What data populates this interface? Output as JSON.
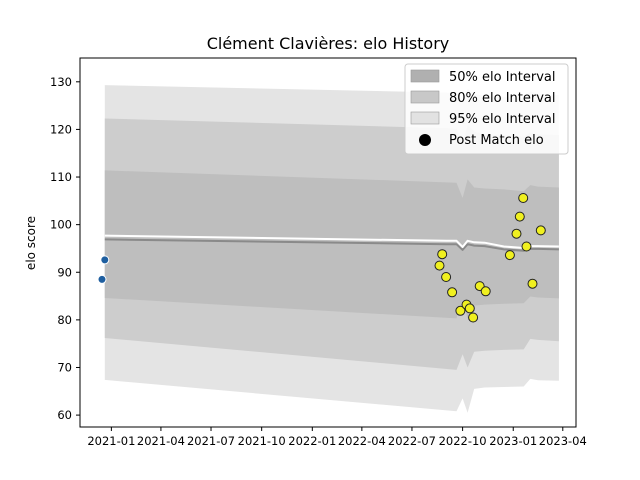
{
  "chart_data": {
    "type": "line",
    "title": "Clément Clavières: elo History",
    "xlabel": "",
    "ylabel": "elo score",
    "x_ticks": [
      "2021-01",
      "2021-04",
      "2021-07",
      "2021-10",
      "2022-01",
      "2022-04",
      "2022-07",
      "2022-10",
      "2023-01",
      "2023-04"
    ],
    "y_ticks": [
      60,
      70,
      80,
      90,
      100,
      110,
      120,
      130
    ],
    "xlim": [
      "2020-11-05",
      "2023-04-25"
    ],
    "ylim": [
      57.5,
      135
    ],
    "legend_position": "top-right",
    "legend": [
      {
        "label": "50% elo Interval",
        "color": "#b0b0b0",
        "kind": "patch"
      },
      {
        "label": "80% elo Interval",
        "color": "#c8c8c8",
        "kind": "patch"
      },
      {
        "label": "95% elo Interval",
        "color": "#e2e2e2",
        "kind": "patch"
      },
      {
        "label": "Post Match elo",
        "color": "#000000",
        "kind": "marker"
      }
    ],
    "bands": [
      {
        "name": "95% elo Interval",
        "color": "#e4e4e4",
        "x": [
          "2020-12-20",
          "2022-09-20",
          "2022-10-01",
          "2022-10-10",
          "2022-10-22",
          "2022-11-10",
          "2022-12-15",
          "2023-01-20",
          "2023-02-01",
          "2023-02-15",
          "2023-03-25"
        ],
        "upper": [
          129.3,
          127.7,
          125.8,
          128.5,
          127.5,
          127.0,
          126.8,
          126.5,
          128.0,
          127.5,
          127.2
        ],
        "lower": [
          67.4,
          60.8,
          63.5,
          60.5,
          65.5,
          65.8,
          65.9,
          66.0,
          67.6,
          67.3,
          67.2
        ]
      },
      {
        "name": "80% elo Interval",
        "color": "#cdcdcd",
        "x": [
          "2020-12-20",
          "2022-09-20",
          "2022-10-01",
          "2022-10-10",
          "2022-10-22",
          "2022-11-10",
          "2022-12-15",
          "2023-01-20",
          "2023-02-01",
          "2023-02-15",
          "2023-03-25"
        ],
        "upper": [
          122.3,
          120.2,
          117.0,
          121.0,
          119.5,
          119.0,
          118.8,
          118.5,
          119.3,
          119.0,
          118.8
        ],
        "lower": [
          76.2,
          69.5,
          72.8,
          70.0,
          73.3,
          73.5,
          73.7,
          73.8,
          76.0,
          75.8,
          75.5
        ]
      },
      {
        "name": "50% elo Interval",
        "color": "#bebebe",
        "x": [
          "2020-12-20",
          "2022-09-20",
          "2022-10-01",
          "2022-10-10",
          "2022-10-22",
          "2022-11-10",
          "2022-12-15",
          "2023-01-20",
          "2023-02-01",
          "2023-02-15",
          "2023-03-25"
        ],
        "upper": [
          111.4,
          108.8,
          105.6,
          109.5,
          107.8,
          107.6,
          107.4,
          107.0,
          108.3,
          108.0,
          107.8
        ],
        "lower": [
          84.6,
          80.3,
          84.2,
          80.3,
          83.0,
          83.2,
          83.4,
          83.5,
          84.9,
          84.7,
          84.5
        ]
      }
    ],
    "series": [
      {
        "name": "elo",
        "color": "#ffffff",
        "x": [
          "2020-12-20",
          "2022-09-01",
          "2022-09-20",
          "2022-10-01",
          "2022-10-10",
          "2022-10-22",
          "2022-11-10",
          "2022-12-15",
          "2023-01-20",
          "2023-02-01",
          "2023-02-15",
          "2023-03-25"
        ],
        "y": [
          97.7,
          96.6,
          96.6,
          95.3,
          96.6,
          96.3,
          96.2,
          95.4,
          95.1,
          95.5,
          95.5,
          95.4
        ]
      },
      {
        "name": "",
        "color": "#8a8a8a",
        "x": [
          "2020-12-20",
          "2022-09-01",
          "2022-09-20",
          "2022-10-01",
          "2022-10-10",
          "2022-10-22",
          "2022-11-10",
          "2022-12-15",
          "2023-01-20",
          "2023-02-01",
          "2023-02-15",
          "2023-03-25"
        ],
        "y": [
          96.9,
          95.9,
          95.9,
          94.7,
          95.9,
          95.6,
          95.5,
          94.8,
          94.5,
          94.9,
          94.9,
          94.8
        ]
      }
    ],
    "points": [
      {
        "x": "2020-12-15",
        "y": 88.5,
        "color": "#1f5fa0"
      },
      {
        "x": "2020-12-20",
        "y": 92.6,
        "color": "#1f5fa0"
      },
      {
        "x": "2022-08-20",
        "y": 91.4,
        "color": "#f0f020"
      },
      {
        "x": "2022-08-25",
        "y": 93.8,
        "color": "#f0f020"
      },
      {
        "x": "2022-09-01",
        "y": 89.0,
        "color": "#f0f020"
      },
      {
        "x": "2022-09-12",
        "y": 85.8,
        "color": "#f0f020"
      },
      {
        "x": "2022-09-27",
        "y": 81.9,
        "color": "#f0f020"
      },
      {
        "x": "2022-10-08",
        "y": 83.2,
        "color": "#f0f020"
      },
      {
        "x": "2022-10-14",
        "y": 82.4,
        "color": "#f0f020"
      },
      {
        "x": "2022-10-20",
        "y": 80.5,
        "color": "#f0f020"
      },
      {
        "x": "2022-11-01",
        "y": 87.1,
        "color": "#f0f020"
      },
      {
        "x": "2022-11-12",
        "y": 86.0,
        "color": "#f0f020"
      },
      {
        "x": "2022-12-26",
        "y": 93.6,
        "color": "#f0f020"
      },
      {
        "x": "2023-01-07",
        "y": 98.1,
        "color": "#f0f020"
      },
      {
        "x": "2023-01-13",
        "y": 101.7,
        "color": "#f0f020"
      },
      {
        "x": "2023-01-19",
        "y": 105.6,
        "color": "#f0f020"
      },
      {
        "x": "2023-01-25",
        "y": 95.4,
        "color": "#f0f020"
      },
      {
        "x": "2023-02-05",
        "y": 87.6,
        "color": "#f0f020"
      },
      {
        "x": "2023-02-20",
        "y": 98.8,
        "color": "#f0f020"
      }
    ]
  }
}
